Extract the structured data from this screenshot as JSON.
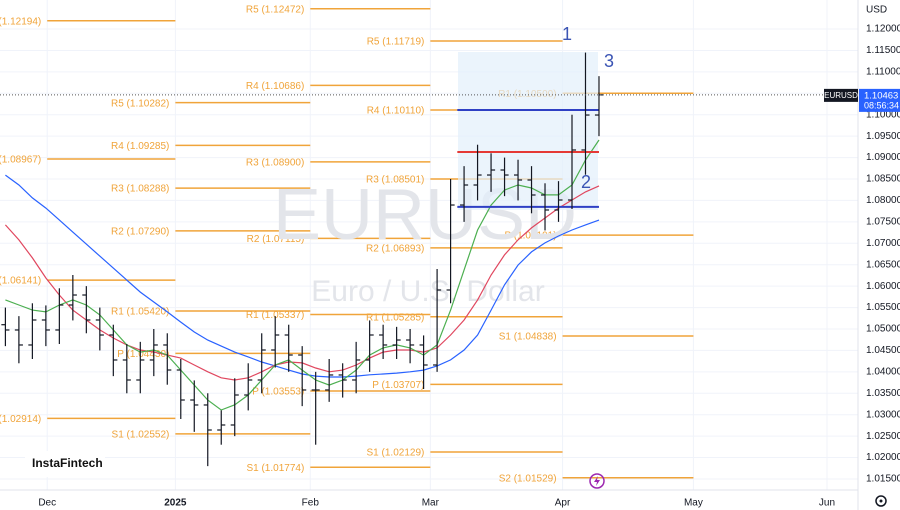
{
  "chart_data": {
    "type": "ohlc",
    "symbol": "EURUSD",
    "watermark": "EURUSD",
    "watermark_subtitle": "Euro / U.S. Dollar",
    "currency": "USD",
    "last_price": {
      "value": 1.10463,
      "label": "1.10463"
    },
    "countdown": "08:56:34",
    "brand": "InstaFintech",
    "annotations": [
      "1",
      "2",
      "3"
    ],
    "grid": true,
    "bar_color": "#131722",
    "xlim": [
      -0.4,
      63.2
    ],
    "xticks": [
      {
        "value": 3.1,
        "label": "Dec"
      },
      {
        "value": 12.6,
        "label": "2025"
      },
      {
        "value": 22.6,
        "label": "Feb"
      },
      {
        "value": 31.5,
        "label": "Mar"
      },
      {
        "value": 41.3,
        "label": "Apr"
      },
      {
        "value": 51.0,
        "label": "May"
      },
      {
        "value": 60.9,
        "label": "Jun"
      }
    ],
    "ylim": [
      1.01243,
      1.12677
    ],
    "yticks": [
      {
        "value": 1.12,
        "label": "1.12000"
      },
      {
        "value": 1.115,
        "label": "1.11500"
      },
      {
        "value": 1.11,
        "label": "1.11000"
      },
      {
        "value": 1.105,
        "label": "1.10500"
      },
      {
        "value": 1.1,
        "label": "1.10000"
      },
      {
        "value": 1.095,
        "label": "1.09500"
      },
      {
        "value": 1.09,
        "label": "1.09000"
      },
      {
        "value": 1.085,
        "label": "1.08500"
      },
      {
        "value": 1.08,
        "label": "1.08000"
      },
      {
        "value": 1.075,
        "label": "1.07500"
      },
      {
        "value": 1.07,
        "label": "1.07000"
      },
      {
        "value": 1.065,
        "label": "1.06500"
      },
      {
        "value": 1.06,
        "label": "1.06000"
      },
      {
        "value": 1.055,
        "label": "1.05500"
      },
      {
        "value": 1.05,
        "label": "1.05000"
      },
      {
        "value": 1.045,
        "label": "1.04500"
      },
      {
        "value": 1.04,
        "label": "1.04000"
      },
      {
        "value": 1.035,
        "label": "1.03500"
      },
      {
        "value": 1.03,
        "label": "1.03000"
      },
      {
        "value": 1.025,
        "label": "1.02500"
      },
      {
        "value": 1.02,
        "label": "1.02000"
      },
      {
        "value": 1.015,
        "label": "1.01500"
      }
    ],
    "open": [
      1.051,
      1.04977,
      1.04627,
      1.0521,
      1.04977,
      1.0556,
      1.05793,
      1.0521,
      1.0486,
      1.04277,
      1.0381,
      1.04277,
      1.04627,
      1.04043,
      1.03343,
      1.03227,
      1.02643,
      1.0276,
      1.0346,
      1.0381,
      1.0451,
      1.0486,
      1.04393,
      1.03577,
      1.03577,
      1.03927,
      1.0381,
      1.04277,
      1.0486,
      1.04627,
      1.04743,
      1.04627,
      1.0416,
      1.0591,
      1.07893,
      1.0836,
      1.08593,
      1.0871,
      1.08593,
      1.08477,
      1.08127,
      1.07777,
      1.0801,
      1.09177,
      1.09993
    ],
    "high": [
      1.055,
      1.053,
      1.056,
      1.0555,
      1.0595,
      1.0626,
      1.06,
      1.055,
      1.051,
      1.0465,
      1.047,
      1.05,
      1.049,
      1.043,
      1.038,
      1.035,
      1.031,
      1.0385,
      1.042,
      1.049,
      1.053,
      1.051,
      1.046,
      1.04,
      1.043,
      1.042,
      1.047,
      1.052,
      1.051,
      1.0505,
      1.05,
      1.0485,
      1.064,
      1.085,
      1.088,
      1.093,
      1.091,
      1.09,
      1.0895,
      1.088,
      1.084,
      1.0845,
      1.1,
      1.1145,
      1.109
    ],
    "low": [
      1.046,
      1.042,
      1.043,
      1.046,
      1.0465,
      1.052,
      1.049,
      1.045,
      1.039,
      1.035,
      1.035,
      1.039,
      1.037,
      1.029,
      1.026,
      1.018,
      1.023,
      1.025,
      1.031,
      1.035,
      1.041,
      1.04,
      1.032,
      1.023,
      1.033,
      1.034,
      1.035,
      1.04,
      1.043,
      1.043,
      1.042,
      1.036,
      1.04,
      1.056,
      1.075,
      1.08,
      1.082,
      1.081,
      1.08,
      1.077,
      1.073,
      1.075,
      1.078,
      1.086,
      1.095
    ],
    "close": [
      1.04977,
      1.04627,
      1.0521,
      1.04977,
      1.0556,
      1.05793,
      1.0521,
      1.0486,
      1.04277,
      1.0381,
      1.04277,
      1.04627,
      1.04043,
      1.03343,
      1.03227,
      1.02643,
      1.0276,
      1.0346,
      1.0381,
      1.0451,
      1.0486,
      1.04393,
      1.03577,
      1.03577,
      1.03927,
      1.0381,
      1.04277,
      1.0486,
      1.04627,
      1.04743,
      1.04627,
      1.0416,
      1.0591,
      1.07893,
      1.0836,
      1.08593,
      1.0871,
      1.08593,
      1.08477,
      1.08127,
      1.07777,
      1.0801,
      1.09177,
      1.09993,
      1.10463
    ],
    "series": [
      {
        "color": "#2962ff",
        "values": [
          1.0859,
          1.0836,
          1.0806,
          1.0782,
          1.0754,
          1.0726,
          1.0698,
          1.067,
          1.0642,
          1.0614,
          1.0586,
          1.0563,
          1.054,
          1.0516,
          1.0493,
          1.0474,
          1.046,
          1.0446,
          1.0435,
          1.0423,
          1.0414,
          1.0404,
          1.0395,
          1.039,
          1.0388,
          1.0388,
          1.039,
          1.0393,
          1.0395,
          1.0397,
          1.04,
          1.0404,
          1.0414,
          1.0428,
          1.0451,
          1.0486,
          1.0544,
          1.0603,
          1.0649,
          1.068,
          1.0701,
          1.0717,
          1.0731,
          1.0743,
          1.0754
        ]
      },
      {
        "color": "#e0475f",
        "values": [
          1.0743,
          1.0708,
          1.0666,
          1.0619,
          1.0579,
          1.0544,
          1.0521,
          1.0498,
          1.0479,
          1.0463,
          1.0451,
          1.0446,
          1.0439,
          1.0432,
          1.0416,
          1.04,
          1.0386,
          1.0381,
          1.0386,
          1.04,
          1.0416,
          1.0423,
          1.0421,
          1.0409,
          1.04,
          1.0404,
          1.0416,
          1.0432,
          1.0446,
          1.0451,
          1.0451,
          1.0446,
          1.0456,
          1.0486,
          1.0521,
          1.0568,
          1.0626,
          1.0673,
          1.0708,
          1.0736,
          1.0759,
          1.0782,
          1.0801,
          1.082,
          1.0834
        ]
      },
      {
        "color": "#4caf50",
        "values": [
          1.0568,
          1.0556,
          1.0544,
          1.054,
          1.0556,
          1.0568,
          1.0556,
          1.0533,
          1.0498,
          1.0463,
          1.0446,
          1.0451,
          1.0439,
          1.0404,
          1.0369,
          1.0334,
          1.0311,
          1.0323,
          1.0346,
          1.0381,
          1.0416,
          1.0428,
          1.0404,
          1.0381,
          1.0369,
          1.0381,
          1.0404,
          1.0439,
          1.0456,
          1.0463,
          1.0456,
          1.0439,
          1.0463,
          1.0544,
          1.0638,
          1.0731,
          1.0789,
          1.0824,
          1.0836,
          1.0829,
          1.0813,
          1.0813,
          1.0836,
          1.0894,
          1.0941
        ]
      }
    ],
    "pivot_color": "#f0a43a",
    "pivot_periods": [
      {
        "levels": [
          {
            "value": 1.12194,
            "label": "(1.12194)"
          },
          {
            "value": 1.08967,
            "label": "(1.08967)"
          },
          {
            "value": 1.06141,
            "label": "(1.06141)"
          },
          {
            "value": 1.02914,
            "label": "(1.02914)"
          }
        ]
      },
      {
        "levels": [
          {
            "value": 1.10282,
            "label": "R5 (1.10282)"
          },
          {
            "value": 1.09285,
            "label": "R4 (1.09285)"
          },
          {
            "value": 1.08288,
            "label": "R3 (1.08288)"
          },
          {
            "value": 1.0729,
            "label": "R2 (1.07290)"
          },
          {
            "value": 1.0542,
            "label": "R1 (1.05420)"
          },
          {
            "value": 1.0443,
            "label": "P (1.04430)"
          },
          {
            "value": 1.02552,
            "label": "S1 (1.02552)"
          }
        ]
      },
      {
        "levels": [
          {
            "value": 1.12472,
            "label": "R5 (1.12472)"
          },
          {
            "value": 1.10686,
            "label": "R4 (1.10686)"
          },
          {
            "value": 1.089,
            "label": "R3 (1.08900)"
          },
          {
            "value": 1.07115,
            "label": "R2 (1.07115)"
          },
          {
            "value": 1.05337,
            "label": "R1 (1.05337)"
          },
          {
            "value": 1.03553,
            "label": "P (1.03553)"
          },
          {
            "value": 1.01774,
            "label": "S1 (1.01774)"
          }
        ]
      },
      {
        "levels": [
          {
            "value": 1.11719,
            "label": "R5 (1.11719)"
          },
          {
            "value": 1.1011,
            "label": "R4 (1.10110)"
          },
          {
            "value": 1.08501,
            "label": "R3 (1.08501)"
          },
          {
            "value": 1.06893,
            "label": "R2 (1.06893)"
          },
          {
            "value": 1.05285,
            "label": "R1 (1.05285)"
          },
          {
            "value": 1.03707,
            "label": "P (1.03707)"
          },
          {
            "value": 1.02129,
            "label": "S1 (1.02129)"
          }
        ]
      },
      {
        "levels": [
          {
            "value": 1.105,
            "label": "R1 (1.10500)"
          },
          {
            "value": 1.07191,
            "label": "P (1.07191)"
          },
          {
            "value": 1.04838,
            "label": "S1 (1.04838)"
          },
          {
            "value": 1.01529,
            "label": "S2 (1.01529)"
          }
        ]
      }
    ],
    "level_range": [
      33.5,
      44
    ],
    "levels": [
      {
        "value": 1.1011,
        "color": "#2e3fc4"
      },
      {
        "value": 1.0913,
        "color": "#e53935"
      },
      {
        "value": 1.0785,
        "color": "#2e3fc4"
      }
    ]
  }
}
